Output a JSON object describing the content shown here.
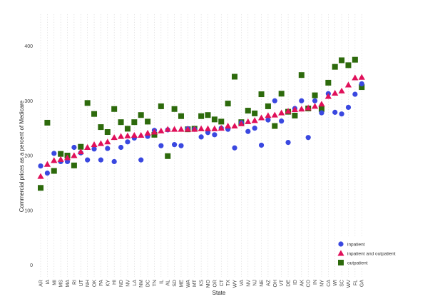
{
  "chart_data": {
    "type": "scatter",
    "xlabel": "State",
    "ylabel": "Commercial prices as a percent of Medicare",
    "ylim": [
      -10,
      440
    ],
    "yticks": [
      0,
      100,
      200,
      300,
      400
    ],
    "grid": "dotted vertical",
    "legend_position": "bottom-right",
    "categories": [
      "AR",
      "IA",
      "MI",
      "MS",
      "MA",
      "RI",
      "UT",
      "NH",
      "OK",
      "PA",
      "KY",
      "HI",
      "ND",
      "NV",
      "LA",
      "NM",
      "DC",
      "TN",
      "IL",
      "AL",
      "SD",
      "ME",
      "WA",
      "MT",
      "KS",
      "MO",
      "OR",
      "CT",
      "TX",
      "WY",
      "VA",
      "NV",
      "NJ",
      "NE",
      "AZ",
      "OH",
      "VT",
      "DE",
      "ID",
      "AK",
      "CO",
      "IN",
      "NY",
      "CA",
      "WI",
      "SC",
      "WV",
      "FL",
      "GA"
    ],
    "series": [
      {
        "name": "inpatient",
        "marker": "circle",
        "color": "#3a48e0",
        "values": [
          181,
          168,
          204,
          189,
          189,
          215,
          205,
          192,
          212,
          192,
          213,
          189,
          215,
          225,
          232,
          192,
          235,
          246,
          218,
          247,
          220,
          218,
          249,
          248,
          234,
          242,
          238,
          250,
          248,
          214,
          260,
          244,
          250,
          219,
          265,
          300,
          263,
          224,
          286,
          300,
          233,
          300,
          278,
          313,
          279,
          276,
          288,
          312,
          331
        ]
      },
      {
        "name": "inpatient and outpatient",
        "marker": "triangle",
        "color": "#e0105a",
        "values": [
          162,
          184,
          191,
          193,
          196,
          200,
          207,
          215,
          220,
          222,
          225,
          233,
          235,
          236,
          237,
          237,
          241,
          243,
          245,
          248,
          248,
          248,
          248,
          248,
          249,
          249,
          249,
          250,
          254,
          254,
          258,
          262,
          264,
          269,
          273,
          274,
          278,
          281,
          284,
          285,
          287,
          290,
          294,
          308,
          314,
          318,
          329,
          342,
          343
        ]
      },
      {
        "name": "outpatient",
        "marker": "square",
        "color": "#2d6a0c",
        "values": [
          141,
          260,
          172,
          203,
          200,
          182,
          216,
          296,
          276,
          252,
          243,
          285,
          261,
          249,
          261,
          274,
          262,
          238,
          290,
          199,
          285,
          272,
          248,
          249,
          272,
          274,
          266,
          262,
          295,
          344,
          261,
          282,
          277,
          312,
          290,
          254,
          313,
          280,
          273,
          347,
          286,
          310,
          285,
          333,
          362,
          374,
          365,
          375,
          325
        ]
      }
    ]
  }
}
